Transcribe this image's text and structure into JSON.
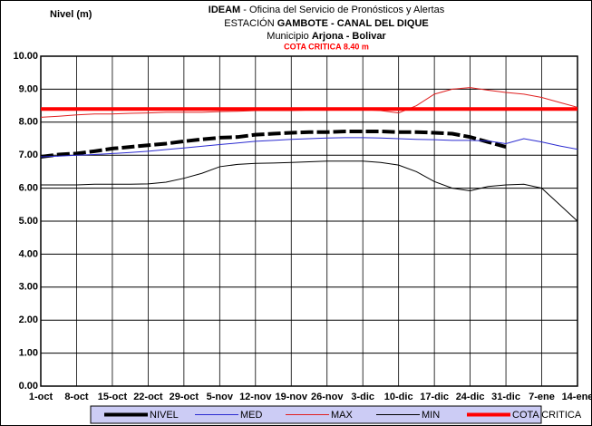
{
  "chart_data": {
    "type": "line",
    "y_label": "Nivel (m)",
    "title_lines": [
      [
        "IDEAM",
        " - Oficina  del Servicio de Pronósticos y Alertas"
      ],
      [
        "ESTACIÓN ",
        "GAMBOTE - CANAL DEL DIQUE"
      ],
      [
        "Municipio ",
        "Arjona - Bolivar"
      ]
    ],
    "subtitle": "COTA CRITICA 8.40 m",
    "categories": [
      "1-oct",
      null,
      "8-oct",
      null,
      "15-oct",
      null,
      "22-oct",
      null,
      "29-oct",
      null,
      "5-nov",
      null,
      "12-nov",
      null,
      "19-nov",
      null,
      "26-nov",
      null,
      "3-dic",
      null,
      "10-dic",
      null,
      "17-dic",
      null,
      "24-dic",
      null,
      "31-dic",
      null,
      "7-ene",
      null,
      "14-ene"
    ],
    "ylim": [
      0,
      10
    ],
    "yticks": [
      {
        "value": 0,
        "label": "0.00"
      },
      {
        "value": 1,
        "label": "1.00"
      },
      {
        "value": 2,
        "label": "2.00"
      },
      {
        "value": 3,
        "label": "3.00"
      },
      {
        "value": 4,
        "label": "4.00"
      },
      {
        "value": 5,
        "label": "5.00"
      },
      {
        "value": 6,
        "label": "6.00"
      },
      {
        "value": 7,
        "label": "7.00"
      },
      {
        "value": 8,
        "label": "8.00"
      },
      {
        "value": 9,
        "label": "9.00"
      },
      {
        "value": 10,
        "label": "10.00"
      }
    ],
    "grid": true,
    "series": [
      {
        "name": "NIVEL",
        "color": "#000000",
        "width": 4,
        "dashed": true,
        "values": [
          6.95,
          7.02,
          7.05,
          7.12,
          7.2,
          7.25,
          7.3,
          7.35,
          7.42,
          7.48,
          7.53,
          7.55,
          7.62,
          7.65,
          7.68,
          7.7,
          7.7,
          7.72,
          7.72,
          7.72,
          7.7,
          7.7,
          7.68,
          7.65,
          7.55,
          7.4,
          7.25,
          null,
          null,
          null,
          null
        ]
      },
      {
        "name": "MED",
        "color": "#2b2bd0",
        "width": 1,
        "values": [
          6.95,
          6.97,
          7.0,
          7.02,
          7.05,
          7.08,
          7.12,
          7.17,
          7.22,
          7.27,
          7.32,
          7.37,
          7.42,
          7.45,
          7.48,
          7.5,
          7.52,
          7.53,
          7.53,
          7.52,
          7.5,
          7.48,
          7.47,
          7.45,
          7.45,
          7.43,
          7.35,
          7.5,
          7.4,
          7.28,
          7.18
        ]
      },
      {
        "name": "MAX",
        "color": "#e02020",
        "width": 1,
        "values": [
          8.15,
          8.18,
          8.22,
          8.25,
          8.25,
          8.27,
          8.28,
          8.3,
          8.3,
          8.3,
          8.32,
          8.33,
          8.35,
          8.35,
          8.35,
          8.37,
          8.38,
          8.38,
          8.38,
          8.35,
          8.28,
          8.5,
          8.85,
          9.0,
          9.05,
          8.97,
          8.9,
          8.85,
          8.75,
          8.6,
          8.45
        ]
      },
      {
        "name": "MIN",
        "color": "#000000",
        "width": 1,
        "values": [
          6.1,
          6.1,
          6.1,
          6.12,
          6.12,
          6.12,
          6.13,
          6.18,
          6.3,
          6.45,
          6.65,
          6.72,
          6.75,
          6.76,
          6.78,
          6.8,
          6.82,
          6.82,
          6.82,
          6.78,
          6.7,
          6.5,
          6.2,
          6.0,
          5.92,
          6.05,
          6.1,
          6.12,
          6.0,
          5.5,
          5.0
        ]
      },
      {
        "name": "COTA CRITICA",
        "color": "#ff0000",
        "width": 4,
        "values": [
          8.4,
          8.4,
          8.4,
          8.4,
          8.4,
          8.4,
          8.4,
          8.4,
          8.4,
          8.4,
          8.4,
          8.4,
          8.4,
          8.4,
          8.4,
          8.4,
          8.4,
          8.4,
          8.4,
          8.4,
          8.4,
          8.4,
          8.4,
          8.4,
          8.4,
          8.4,
          8.4,
          8.4,
          8.4,
          8.4,
          8.4
        ]
      }
    ]
  }
}
